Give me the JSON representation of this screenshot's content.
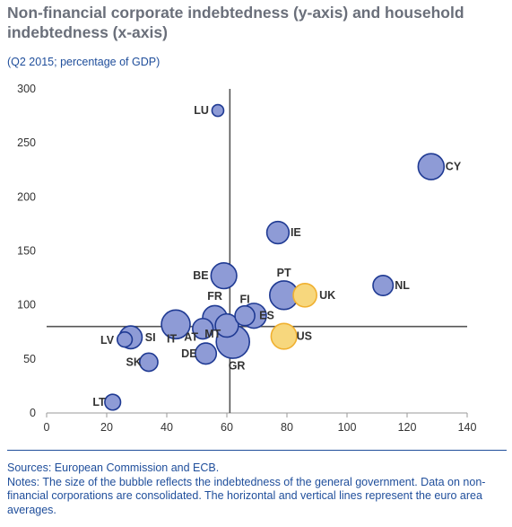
{
  "header": {
    "title": "Non-financial corporate indebtedness (y-axis) and household indebtedness (x-axis)",
    "subtitle": "(Q2 2015; percentage of GDP)"
  },
  "footer": {
    "sources": "Sources: European Commission and ECB.",
    "notes": "Notes: The size of the bubble reflects the indebtedness of the general government. Data on non-financial corporations are consolidated. The horizontal and vertical lines represent the euro area averages."
  },
  "colors": {
    "bubble_fill": "#8e9bd6",
    "bubble_stroke": "#1f3a93",
    "highlight_fill": "#f7d77d",
    "highlight_stroke": "#f0b030",
    "axis_line": "#555555",
    "text": "#333333"
  },
  "chart_data": {
    "type": "bubble",
    "xlim": [
      0,
      140
    ],
    "ylim": [
      0,
      300
    ],
    "x_ticks": [
      0,
      20,
      40,
      60,
      80,
      100,
      120,
      140
    ],
    "y_ticks": [
      0,
      50,
      100,
      150,
      200,
      250,
      300
    ],
    "reference_lines": {
      "x": 61,
      "y": 80
    },
    "points": [
      {
        "label": "LU",
        "x": 57,
        "y": 280,
        "size": 22,
        "highlight": false
      },
      {
        "label": "CY",
        "x": 128,
        "y": 228,
        "size": 108,
        "highlight": false
      },
      {
        "label": "IE",
        "x": 77,
        "y": 167,
        "size": 79,
        "highlight": false
      },
      {
        "label": "BE",
        "x": 59,
        "y": 127,
        "size": 106,
        "highlight": false
      },
      {
        "label": "PT",
        "x": 79,
        "y": 109,
        "size": 130,
        "highlight": false
      },
      {
        "label": "UK",
        "x": 86,
        "y": 109,
        "size": 88,
        "highlight": true
      },
      {
        "label": "NL",
        "x": 112,
        "y": 118,
        "size": 65,
        "highlight": false
      },
      {
        "label": "FR",
        "x": 56,
        "y": 88,
        "size": 96,
        "highlight": false
      },
      {
        "label": "FI",
        "x": 66,
        "y": 90,
        "size": 63,
        "highlight": false
      },
      {
        "label": "ES",
        "x": 69,
        "y": 90,
        "size": 99,
        "highlight": false
      },
      {
        "label": "MT",
        "x": 52,
        "y": 78,
        "size": 67,
        "highlight": false
      },
      {
        "label": "AT",
        "x": 60,
        "y": 81,
        "size": 86,
        "highlight": false
      },
      {
        "label": "IT",
        "x": 43,
        "y": 82,
        "size": 132,
        "highlight": false
      },
      {
        "label": "US",
        "x": 79,
        "y": 71,
        "size": 105,
        "highlight": true
      },
      {
        "label": "LV",
        "x": 26,
        "y": 68,
        "size": 36,
        "highlight": false
      },
      {
        "label": "SI",
        "x": 28,
        "y": 70,
        "size": 83,
        "highlight": false
      },
      {
        "label": "DE",
        "x": 53,
        "y": 55,
        "size": 71,
        "highlight": false
      },
      {
        "label": "GR",
        "x": 62,
        "y": 66,
        "size": 177,
        "highlight": false
      },
      {
        "label": "SK",
        "x": 34,
        "y": 47,
        "size": 53,
        "highlight": false
      },
      {
        "label": "LT",
        "x": 22,
        "y": 10,
        "size": 40,
        "highlight": false
      }
    ]
  }
}
